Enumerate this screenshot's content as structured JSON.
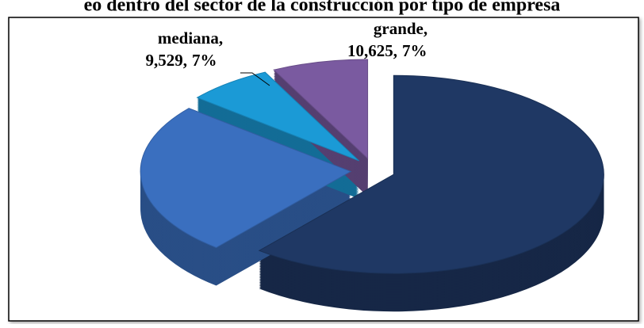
{
  "chart_data": {
    "type": "pie3d",
    "title": "eo dentro del sector de la construcción por tipo de empresa",
    "categories": [
      null,
      null,
      "mediana,",
      "grande,"
    ],
    "values": [
      88000,
      36000,
      9529,
      10625
    ],
    "value_labels": [
      null,
      null,
      "9,529,",
      "10,625,"
    ],
    "percent_labels": [
      null,
      null,
      "7%",
      "7%"
    ],
    "colors": [
      "#1f3864",
      "#3a6fbf",
      "#1b9ad6",
      "#7a5aa0"
    ]
  }
}
